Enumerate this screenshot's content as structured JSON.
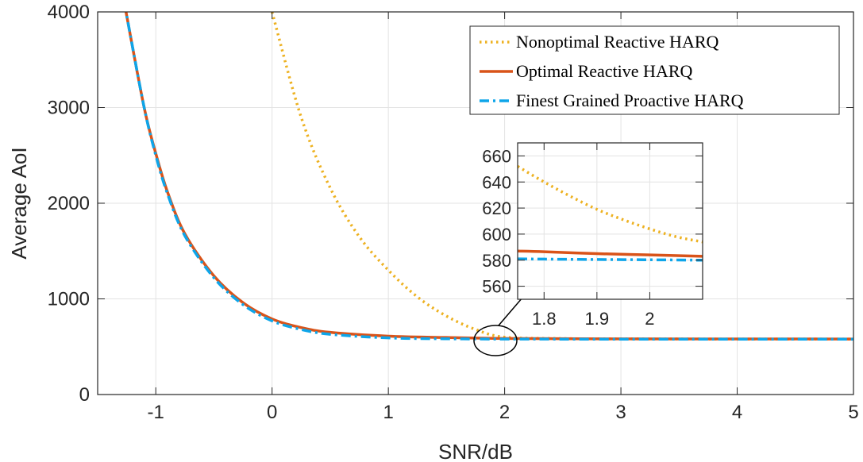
{
  "chart_data": {
    "type": "line",
    "xlabel": "SNR/dB",
    "ylabel": "Average AoI",
    "xlim": [
      -1.5,
      5
    ],
    "ylim": [
      0,
      4000
    ],
    "xticks": [
      -1,
      0,
      1,
      2,
      3,
      4,
      5
    ],
    "yticks": [
      0,
      1000,
      2000,
      3000,
      4000
    ],
    "xtick_labels": [
      "-1",
      "0",
      "1",
      "2",
      "3",
      "4",
      "5"
    ],
    "ytick_labels": [
      "0",
      "1000",
      "2000",
      "3000",
      "4000"
    ],
    "grid": true,
    "legend_position": "top-right",
    "series": [
      {
        "name": "Nonoptimal Reactive HARQ",
        "color": "#EDB120",
        "style": "dotted",
        "x": [
          0,
          0.25,
          0.5,
          0.75,
          1,
          1.25,
          1.5,
          1.75,
          2,
          2.5,
          3,
          4,
          5
        ],
        "y": [
          4000,
          2900,
          2160,
          1650,
          1300,
          1020,
          820,
          680,
          600,
          585,
          582,
          580,
          580
        ]
      },
      {
        "name": "Optimal Reactive HARQ",
        "color": "#D95319",
        "style": "solid",
        "x": [
          -1.3,
          -1.25,
          -1.1,
          -1,
          -0.9,
          -0.75,
          -0.5,
          -0.25,
          0,
          0.25,
          0.5,
          1,
          1.5,
          2,
          3,
          4,
          5
        ],
        "y": [
          4300,
          3960,
          3000,
          2520,
          2120,
          1680,
          1240,
          960,
          790,
          700,
          650,
          610,
          596,
          586,
          582,
          581,
          580
        ]
      },
      {
        "name": "Finest Grained Proactive HARQ",
        "color": "#0EA5E9",
        "style": "dashdot",
        "x": [
          -1.3,
          -1.25,
          -1.1,
          -1,
          -0.9,
          -0.75,
          -0.5,
          -0.25,
          0,
          0.25,
          0.5,
          1,
          1.5,
          2,
          3,
          4,
          5
        ],
        "y": [
          4300,
          3960,
          3000,
          2500,
          2100,
          1660,
          1220,
          940,
          770,
          680,
          630,
          592,
          583,
          580,
          579,
          579,
          579
        ]
      }
    ],
    "inset": {
      "xlim": [
        1.75,
        2.1
      ],
      "ylim": [
        550,
        670
      ],
      "xticks": [
        1.8,
        1.9,
        2
      ],
      "yticks": [
        560,
        580,
        600,
        620,
        640,
        660
      ],
      "xtick_labels": [
        "1.8",
        "1.9",
        "2"
      ],
      "ytick_labels": [
        "560",
        "580",
        "600",
        "620",
        "640",
        "660"
      ],
      "series": [
        {
          "name": "Nonoptimal Reactive HARQ",
          "x": [
            1.75,
            1.8,
            1.85,
            1.9,
            1.95,
            2.0,
            2.05,
            2.1
          ],
          "y": [
            652,
            640,
            629,
            619,
            611,
            604,
            598,
            594
          ]
        },
        {
          "name": "Optimal Reactive HARQ",
          "x": [
            1.75,
            1.8,
            1.9,
            2.0,
            2.1
          ],
          "y": [
            587,
            586.5,
            585,
            584,
            583
          ]
        },
        {
          "name": "Finest Grained Proactive HARQ",
          "x": [
            1.75,
            1.8,
            1.9,
            2.0,
            2.1
          ],
          "y": [
            581,
            580.8,
            580.5,
            580.3,
            580
          ]
        }
      ]
    }
  }
}
